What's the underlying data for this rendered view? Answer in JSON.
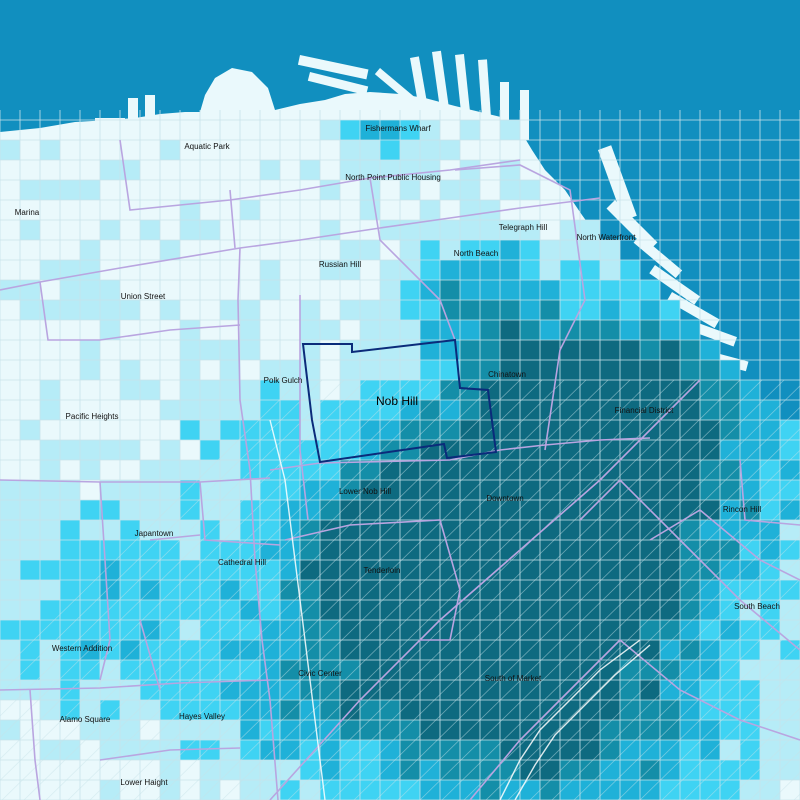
{
  "map": {
    "selected_neighborhood": "Nob Hill",
    "colors": {
      "water": "#118fbf",
      "land": "#eaf9fc",
      "grid_line": "#c8e3ea",
      "district_border": "#b9a5e0",
      "selected_border": "#0b2b7a",
      "label": "#111111",
      "scale": [
        "#eaf9fc",
        "#b6ecf7",
        "#3fd3f3",
        "#1fb1d8",
        "#148ea8",
        "#0e6a80"
      ]
    },
    "neighborhoods": [
      {
        "id": "fishermans-wharf",
        "name": "Fishermans Wharf"
      },
      {
        "id": "aquatic-park",
        "name": "Aquatic Park"
      },
      {
        "id": "north-point-public-housing",
        "name": "North Point Public Housing"
      },
      {
        "id": "marina",
        "name": "Marina"
      },
      {
        "id": "telegraph-hill",
        "name": "Telegraph Hill"
      },
      {
        "id": "north-waterfront",
        "name": "North Waterfront"
      },
      {
        "id": "north-beach",
        "name": "North Beach"
      },
      {
        "id": "russian-hill",
        "name": "Russian Hill"
      },
      {
        "id": "union-street",
        "name": "Union Street"
      },
      {
        "id": "polk-gulch",
        "name": "Polk Gulch"
      },
      {
        "id": "chinatown",
        "name": "Chinatown"
      },
      {
        "id": "nob-hill",
        "name": "Nob Hill"
      },
      {
        "id": "pacific-heights",
        "name": "Pacific Heights"
      },
      {
        "id": "financial-district",
        "name": "Financial District"
      },
      {
        "id": "lower-nob-hill",
        "name": "Lower Nob Hill"
      },
      {
        "id": "downtown",
        "name": "Downtown"
      },
      {
        "id": "rincon-hill",
        "name": "Rincon Hill"
      },
      {
        "id": "japantown",
        "name": "Japantown"
      },
      {
        "id": "cathedral-hill",
        "name": "Cathedral Hill"
      },
      {
        "id": "tenderloin",
        "name": "Tenderloin"
      },
      {
        "id": "south-beach",
        "name": "South Beach"
      },
      {
        "id": "western-addition",
        "name": "Western Addition"
      },
      {
        "id": "civic-center",
        "name": "Civic Center"
      },
      {
        "id": "south-of-market",
        "name": "South of Market"
      },
      {
        "id": "alamo-square",
        "name": "Alamo Square"
      },
      {
        "id": "hayes-valley",
        "name": "Hayes Valley"
      },
      {
        "id": "lower-haight",
        "name": "Lower Haight"
      }
    ]
  }
}
